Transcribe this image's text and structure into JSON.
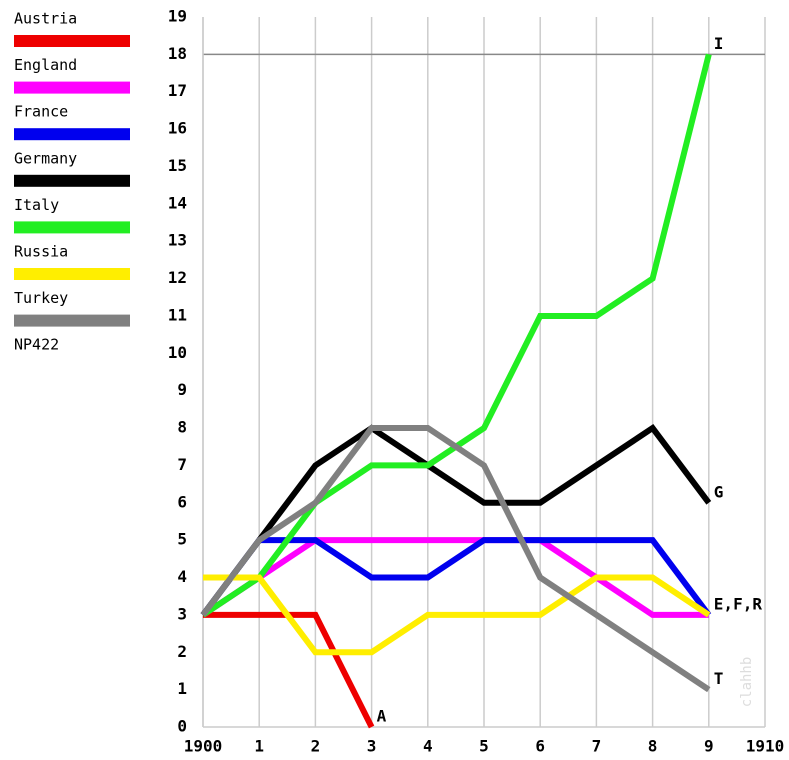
{
  "chart_data": {
    "type": "line",
    "x": [
      1900,
      1901,
      1902,
      1903,
      1904,
      1905,
      1906,
      1907,
      1908,
      1909
    ],
    "series": [
      {
        "name": "Austria",
        "color": "#ee0000",
        "values": [
          3,
          3,
          3,
          0,
          null,
          null,
          null,
          null,
          null,
          null
        ]
      },
      {
        "name": "England",
        "color": "#ff00ff",
        "values": [
          3,
          4,
          5,
          5,
          5,
          5,
          5,
          4,
          3,
          3
        ]
      },
      {
        "name": "France",
        "color": "#0000ee",
        "values": [
          3,
          5,
          5,
          4,
          4,
          5,
          5,
          5,
          5,
          3
        ]
      },
      {
        "name": "Germany",
        "color": "#000000",
        "values": [
          3,
          5,
          7,
          8,
          7,
          6,
          6,
          7,
          8,
          6
        ]
      },
      {
        "name": "Italy",
        "color": "#22ee22",
        "values": [
          3,
          4,
          6,
          7,
          7,
          8,
          11,
          11,
          12,
          18
        ]
      },
      {
        "name": "Russia",
        "color": "#ffee00",
        "values": [
          4,
          4,
          2,
          2,
          3,
          3,
          3,
          4,
          4,
          3
        ]
      },
      {
        "name": "Turkey",
        "color": "#808080",
        "values": [
          3,
          5,
          6,
          8,
          8,
          7,
          4,
          3,
          2,
          1
        ]
      }
    ],
    "legend_note": "NP422",
    "xlim": [
      1900,
      1910
    ],
    "xticks": [
      1900,
      {
        "value": 1901,
        "label": "1"
      },
      {
        "value": 1902,
        "label": "2"
      },
      {
        "value": 1903,
        "label": "3"
      },
      {
        "value": 1904,
        "label": "4"
      },
      {
        "value": 1905,
        "label": "5"
      },
      {
        "value": 1906,
        "label": "6"
      },
      {
        "value": 1907,
        "label": "7"
      },
      {
        "value": 1908,
        "label": "8"
      },
      {
        "value": 1909,
        "label": "9"
      },
      1910
    ],
    "ylim": [
      0,
      19
    ],
    "yticks": [
      0,
      1,
      2,
      3,
      4,
      5,
      6,
      7,
      8,
      9,
      10,
      11,
      12,
      13,
      14,
      15,
      16,
      17,
      18,
      19
    ],
    "ref_line": 18,
    "grid": "x",
    "annotations": [
      {
        "text": "A",
        "x": 1903,
        "y": 0
      },
      {
        "text": "I",
        "x": 1909,
        "y": 18
      },
      {
        "text": "G",
        "x": 1909,
        "y": 6
      },
      {
        "text": "E,F,R",
        "x": 1909,
        "y": 3
      },
      {
        "text": "T",
        "x": 1909,
        "y": 1
      }
    ],
    "watermark": "clahhb"
  }
}
